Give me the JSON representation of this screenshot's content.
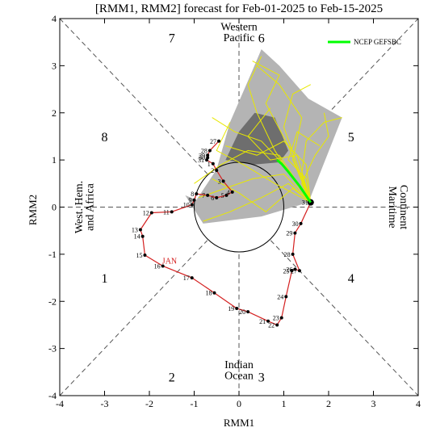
{
  "chart_data": {
    "type": "line",
    "title": "[RMM1, RMM2] forecast for Feb-01-2025 to Feb-15-2025",
    "xlabel": "RMM1",
    "ylabel": "RMM2",
    "xlim": [
      -4,
      4
    ],
    "ylim": [
      -4,
      4
    ],
    "xticks": [
      -4,
      -3,
      -2,
      -1,
      0,
      1,
      2,
      3,
      4
    ],
    "yticks": [
      -4,
      -3,
      -2,
      -1,
      0,
      1,
      2,
      3,
      4
    ],
    "phases": [
      {
        "label": "1",
        "x": -3.0,
        "y": -1.5
      },
      {
        "label": "2",
        "x": -1.5,
        "y": -3.6
      },
      {
        "label": "3",
        "x": 0.5,
        "y": -3.6
      },
      {
        "label": "4",
        "x": 2.5,
        "y": -1.5
      },
      {
        "label": "5",
        "x": 2.5,
        "y": 1.5
      },
      {
        "label": "6",
        "x": 0.5,
        "y": 3.6
      },
      {
        "label": "7",
        "x": -1.5,
        "y": 3.6
      },
      {
        "label": "8",
        "x": -3.0,
        "y": 1.5
      }
    ],
    "regions": {
      "top": [
        "Western",
        "Pacific"
      ],
      "bottom": [
        "Indian",
        "Ocean"
      ],
      "left": [
        "West. Hem.",
        "and Africa"
      ],
      "right": [
        "Maritime",
        "Continent"
      ]
    },
    "legend": {
      "label": "NCEP GEFSBC",
      "color": "#00ff00",
      "position": "top-right"
    },
    "observed": {
      "name": "",
      "color": "#d42020",
      "month_label": "JAN",
      "month_label_at": [
        -1.55,
        -1.2
      ],
      "points": [
        {
          "day": "12",
          "x": -1.95,
          "y": -0.12
        },
        {
          "day": "11",
          "x": -1.5,
          "y": -0.1
        },
        {
          "day": "10",
          "x": -1.05,
          "y": 0.05
        },
        {
          "day": "9",
          "x": -1.0,
          "y": 0.15
        },
        {
          "day": "8",
          "x": -0.95,
          "y": 0.28
        },
        {
          "day": "7",
          "x": -0.7,
          "y": 0.25
        },
        {
          "day": "6",
          "x": -0.5,
          "y": 0.2
        },
        {
          "day": "5",
          "x": -0.28,
          "y": 0.25
        },
        {
          "day": "4",
          "x": -0.15,
          "y": 0.32
        },
        {
          "day": "3",
          "x": -0.35,
          "y": 0.55
        },
        {
          "day": "2",
          "x": -0.5,
          "y": 0.78
        },
        {
          "day": "1",
          "x": -0.58,
          "y": 0.92
        },
        {
          "day": "31",
          "x": -0.72,
          "y": 1.0
        },
        {
          "day": "30",
          "x": -0.7,
          "y": 1.05
        },
        {
          "day": "29",
          "x": -0.7,
          "y": 1.1
        },
        {
          "day": "28",
          "x": -0.65,
          "y": 1.2
        },
        {
          "day": "27",
          "x": -0.45,
          "y": 1.4
        }
      ],
      "track": [
        {
          "day": "13",
          "x": -2.2,
          "y": -0.48
        },
        {
          "day": "14",
          "x": -2.15,
          "y": -0.62
        },
        {
          "day": "15",
          "x": -2.1,
          "y": -1.02
        },
        {
          "day": "16",
          "x": -1.7,
          "y": -1.25
        },
        {
          "day": "17",
          "x": -1.05,
          "y": -1.5
        },
        {
          "day": "18",
          "x": -0.55,
          "y": -1.82
        },
        {
          "day": "19",
          "x": -0.05,
          "y": -2.15
        },
        {
          "day": "20",
          "x": 0.2,
          "y": -2.22
        },
        {
          "day": "21",
          "x": 0.65,
          "y": -2.42
        },
        {
          "day": "22",
          "x": 0.85,
          "y": -2.5
        },
        {
          "day": "23",
          "x": 0.95,
          "y": -2.35
        },
        {
          "day": "24",
          "x": 1.05,
          "y": -1.9
        },
        {
          "day": "25",
          "x": 1.18,
          "y": -1.35
        },
        {
          "day": "26",
          "x": 1.25,
          "y": -1.32
        },
        {
          "day": "27",
          "x": 1.35,
          "y": -1.35
        },
        {
          "day": "28",
          "x": 1.2,
          "y": -1.0
        },
        {
          "day": "29",
          "x": 1.25,
          "y": -0.55
        },
        {
          "day": "30",
          "x": 1.38,
          "y": -0.35
        },
        {
          "day": "31",
          "x": 1.6,
          "y": 0.1
        }
      ]
    },
    "forecast_mean": {
      "name": "NCEP GEFSBC",
      "color": "#00ff00",
      "points": [
        {
          "x": 1.6,
          "y": 0.1
        },
        {
          "x": 1.35,
          "y": 0.45
        },
        {
          "x": 1.1,
          "y": 0.75
        },
        {
          "x": 0.95,
          "y": 0.92
        },
        {
          "x": 0.85,
          "y": 1.0
        }
      ]
    },
    "plume_outer": {
      "color": "#b4b4b4",
      "points": [
        {
          "x": -0.95,
          "y": 0.15
        },
        {
          "x": -0.5,
          "y": 0.8
        },
        {
          "x": -0.2,
          "y": 1.8
        },
        {
          "x": 0.3,
          "y": 2.9
        },
        {
          "x": 0.5,
          "y": 3.35
        },
        {
          "x": 0.9,
          "y": 3.0
        },
        {
          "x": 1.55,
          "y": 2.3
        },
        {
          "x": 2.3,
          "y": 1.9
        },
        {
          "x": 1.8,
          "y": 0.7
        },
        {
          "x": 1.55,
          "y": 0.1
        },
        {
          "x": 0.5,
          "y": -0.2
        },
        {
          "x": -0.8,
          "y": -0.35
        },
        {
          "x": -1.2,
          "y": 0.25
        }
      ]
    },
    "plume_inner": {
      "color": "#6e6e6e",
      "points": [
        {
          "x": -0.3,
          "y": 1.0
        },
        {
          "x": 0.0,
          "y": 1.6
        },
        {
          "x": 0.35,
          "y": 2.0
        },
        {
          "x": 0.8,
          "y": 1.9
        },
        {
          "x": 1.1,
          "y": 1.2
        },
        {
          "x": 0.9,
          "y": 0.95
        },
        {
          "x": 0.3,
          "y": 0.9
        }
      ]
    },
    "members": [
      [
        [
          1.6,
          0.1
        ],
        [
          1.2,
          0.6
        ],
        [
          0.8,
          1.2
        ],
        [
          0.4,
          2.0
        ],
        [
          0.2,
          2.6
        ],
        [
          0.5,
          3.2
        ]
      ],
      [
        [
          1.6,
          0.1
        ],
        [
          1.4,
          0.7
        ],
        [
          1.5,
          1.4
        ],
        [
          1.9,
          1.8
        ],
        [
          2.3,
          1.9
        ]
      ],
      [
        [
          1.6,
          0.1
        ],
        [
          1.0,
          0.9
        ],
        [
          0.5,
          1.4
        ],
        [
          -0.1,
          1.6
        ],
        [
          -0.6,
          1.9
        ]
      ],
      [
        [
          1.6,
          0.1
        ],
        [
          1.1,
          0.5
        ],
        [
          0.5,
          0.2
        ],
        [
          -0.2,
          -0.1
        ],
        [
          -0.8,
          -0.3
        ]
      ],
      [
        [
          1.6,
          0.1
        ],
        [
          1.3,
          0.9
        ],
        [
          1.0,
          1.7
        ],
        [
          1.2,
          2.4
        ],
        [
          1.6,
          2.6
        ]
      ],
      [
        [
          1.6,
          0.1
        ],
        [
          0.9,
          1.1
        ],
        [
          0.2,
          1.2
        ],
        [
          -0.4,
          0.9
        ],
        [
          -1.0,
          0.5
        ]
      ],
      [
        [
          1.6,
          0.1
        ],
        [
          1.5,
          0.9
        ],
        [
          1.0,
          1.4
        ],
        [
          0.4,
          1.1
        ],
        [
          -0.3,
          1.3
        ]
      ],
      [
        [
          1.6,
          0.1
        ],
        [
          1.2,
          1.0
        ],
        [
          1.4,
          1.9
        ],
        [
          0.9,
          2.6
        ],
        [
          0.4,
          3.0
        ]
      ],
      [
        [
          1.6,
          0.1
        ],
        [
          1.0,
          0.7
        ],
        [
          0.3,
          0.6
        ],
        [
          -0.3,
          0.4
        ],
        [
          -0.9,
          0.2
        ]
      ],
      [
        [
          1.6,
          0.1
        ],
        [
          1.4,
          0.5
        ],
        [
          1.7,
          1.1
        ],
        [
          2.0,
          1.5
        ],
        [
          1.9,
          2.0
        ]
      ],
      [
        [
          1.6,
          0.1
        ],
        [
          1.1,
          1.3
        ],
        [
          0.6,
          2.2
        ],
        [
          0.9,
          2.8
        ],
        [
          0.3,
          3.1
        ]
      ],
      [
        [
          1.6,
          0.1
        ],
        [
          0.8,
          0.5
        ],
        [
          0.1,
          0.9
        ],
        [
          -0.5,
          1.2
        ],
        [
          -0.2,
          1.8
        ]
      ],
      [
        [
          1.6,
          0.1
        ],
        [
          1.3,
          1.1
        ],
        [
          0.7,
          1.0
        ],
        [
          0.2,
          1.5
        ],
        [
          0.7,
          2.1
        ]
      ],
      [
        [
          1.6,
          0.1
        ],
        [
          1.2,
          0.4
        ],
        [
          0.6,
          -0.1
        ],
        [
          0.0,
          0.3
        ],
        [
          -0.6,
          0.6
        ]
      ],
      [
        [
          1.6,
          0.1
        ],
        [
          1.5,
          0.6
        ],
        [
          1.1,
          1.0
        ],
        [
          1.3,
          1.6
        ],
        [
          1.8,
          1.3
        ]
      ]
    ]
  }
}
